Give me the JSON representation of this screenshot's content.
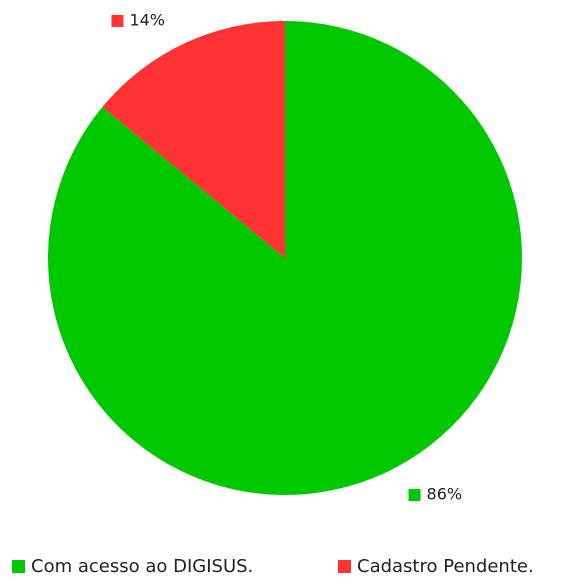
{
  "chart_data": {
    "type": "pie",
    "categories": [
      "Com acesso ao DIGISUS.",
      "Cadastro Pendente."
    ],
    "values": [
      86,
      14
    ],
    "value_labels": [
      "86%",
      "14%"
    ],
    "colors": [
      "#00c800",
      "#ff3333"
    ],
    "legend": "bottom"
  }
}
